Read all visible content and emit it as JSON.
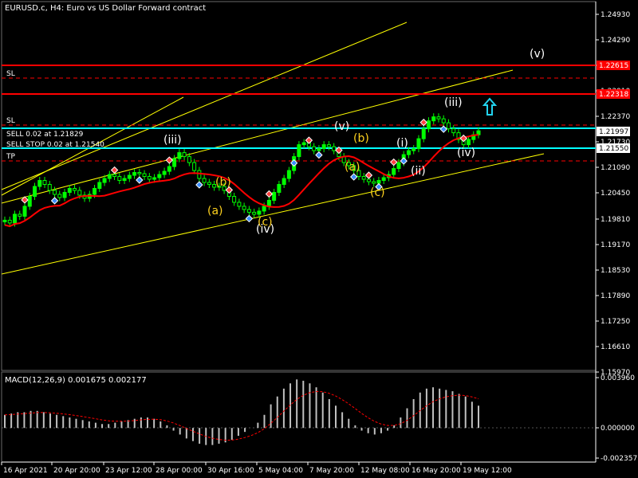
{
  "chart_title": "EURUSD.c, H4:  Euro vs US Dollar Forward contract",
  "colors": {
    "background": "#000000",
    "bull": "#00ff00",
    "ma": "#ff0000",
    "channel": "#ffff00",
    "resistance": "#ff0000",
    "trade_line": "#00ffff",
    "wave_white": "#ffffff",
    "wave_yellow": "#ffd21e",
    "macd_hist": "#c0c0c0",
    "macd_signal": "#ff0000"
  },
  "price_axis": {
    "ticks": [
      "1.24930",
      "1.24290",
      "1.23650",
      "1.23010",
      "1.22370",
      "1.21730",
      "1.21090",
      "1.20450",
      "1.19810",
      "1.19170",
      "1.18530",
      "1.17890",
      "1.17250",
      "1.16610",
      "1.15970"
    ],
    "tags": [
      {
        "value": "1.22615",
        "bg": "#ff0000",
        "fg": "#ffffff"
      },
      {
        "value": "1.22318",
        "bg": "#ff0000",
        "fg": "#ffffff"
      },
      {
        "value": "1.21997",
        "bg": "#ffffff",
        "fg": "#000000"
      },
      {
        "value": "1.21550",
        "bg": "#ffffff",
        "fg": "#000000"
      }
    ]
  },
  "time_axis": [
    "16 Apr 2021",
    "20 Apr 20:00",
    "23 Apr 12:00",
    "28 Apr 00:00",
    "30 Apr 16:00",
    "5 May 04:00",
    "7 May 20:00",
    "12 May 08:00",
    "16 May 20:00",
    "19 May 12:00"
  ],
  "line_labels": {
    "sl_upper": "SL",
    "sl_lower": "SL",
    "sell": "SELL 0.02 at 1.21829",
    "sell_stop": "SELL STOP 0.02 at 1.21540",
    "tp": "TP"
  },
  "wave_labels": [
    {
      "text": "(iii)",
      "color": "white"
    },
    {
      "text": "(a)",
      "color": "yellow"
    },
    {
      "text": "(b)",
      "color": "yellow"
    },
    {
      "text": "(iv)",
      "color": "white"
    },
    {
      "text": "(c)",
      "color": "yellow"
    },
    {
      "text": "(v)",
      "color": "white"
    },
    {
      "text": "(a)",
      "color": "yellow"
    },
    {
      "text": "(b)",
      "color": "yellow"
    },
    {
      "text": "(c)",
      "color": "yellow"
    },
    {
      "text": "(i)",
      "color": "white"
    },
    {
      "text": "(ii)",
      "color": "white"
    },
    {
      "text": "(iii)",
      "color": "white"
    },
    {
      "text": "(iv)",
      "color": "white"
    },
    {
      "text": "(v)",
      "color": "white"
    }
  ],
  "icons": [
    "arrow-up-icon",
    "buy-signal-icon",
    "sell-signal-icon"
  ],
  "macd": {
    "label": "MACD(12,26,9) 0.001675 0.002177",
    "ticks": [
      "0.003960",
      "0.000000",
      "-0.002357"
    ]
  },
  "chart_data": [
    {
      "type": "candlestick",
      "title": "EURUSD.c, H4:  Euro vs US Dollar Forward contract",
      "ylim": [
        1.1597,
        1.2525
      ],
      "close": [
        1.1975,
        1.1968,
        1.199,
        1.1985,
        1.201,
        1.2035,
        1.206,
        1.2075,
        1.2065,
        1.205,
        1.204,
        1.2032,
        1.2045,
        1.2055,
        1.205,
        1.2038,
        1.203,
        1.204,
        1.2055,
        1.207,
        1.208,
        1.209,
        1.2085,
        1.2075,
        1.208,
        1.2088,
        1.2095,
        1.2092,
        1.2085,
        1.2078,
        1.2082,
        1.209,
        1.2098,
        1.211,
        1.213,
        1.2145,
        1.2135,
        1.212,
        1.21,
        1.208,
        1.207,
        1.2065,
        1.2058,
        1.206,
        1.205,
        1.2035,
        1.202,
        1.201,
        1.2002,
        1.1995,
        1.199,
        1.1998,
        1.201,
        1.2025,
        1.2045,
        1.2065,
        1.208,
        1.21,
        1.2135,
        1.2165,
        1.217,
        1.216,
        1.215,
        1.2155,
        1.2165,
        1.216,
        1.215,
        1.2135,
        1.212,
        1.2112,
        1.21,
        1.2085,
        1.2078,
        1.2072,
        1.2068,
        1.2075,
        1.2082,
        1.209,
        1.2105,
        1.212,
        1.214,
        1.215,
        1.2155,
        1.218,
        1.2205,
        1.2225,
        1.2235,
        1.223,
        1.222,
        1.2205,
        1.2195,
        1.2178,
        1.2165,
        1.2178,
        1.219,
        1.22
      ],
      "wave_counts": [
        "(iii)",
        "(a)",
        "(b)",
        "(iv)",
        "(c)",
        "(v)",
        "(a)",
        "(b)",
        "(c)",
        "(i)",
        "(ii)",
        "(iii)",
        "(iv)",
        "(v)"
      ]
    },
    {
      "type": "bar",
      "title": "MACD(12,26,9) 0.001675 0.002177",
      "ylim": [
        -0.002357,
        0.00396
      ],
      "values": [
        0.001,
        0.0011,
        0.0012,
        0.0012,
        0.0013,
        0.0013,
        0.0012,
        0.0011,
        0.001,
        0.0009,
        0.0008,
        0.0007,
        0.0006,
        0.0005,
        0.0004,
        0.0003,
        0.0003,
        0.0004,
        0.0005,
        0.0006,
        0.0007,
        0.0008,
        0.0008,
        0.0007,
        0.0005,
        0.0002,
        -0.0002,
        -0.0005,
        -0.0008,
        -0.001,
        -0.0012,
        -0.0013,
        -0.0013,
        -0.0012,
        -0.0011,
        -0.0009,
        -0.0006,
        -0.0003,
        0.0,
        0.0004,
        0.001,
        0.0018,
        0.0024,
        0.003,
        0.0034,
        0.0037,
        0.0036,
        0.0034,
        0.0031,
        0.0027,
        0.0022,
        0.0017,
        0.0012,
        0.0007,
        0.0002,
        -0.0002,
        -0.0004,
        -0.0005,
        -0.0004,
        -0.0002,
        0.0002,
        0.0008,
        0.0015,
        0.0022,
        0.0027,
        0.003,
        0.0031,
        0.003,
        0.0029,
        0.0028,
        0.0026,
        0.0024,
        0.002,
        0.0017
      ]
    }
  ]
}
